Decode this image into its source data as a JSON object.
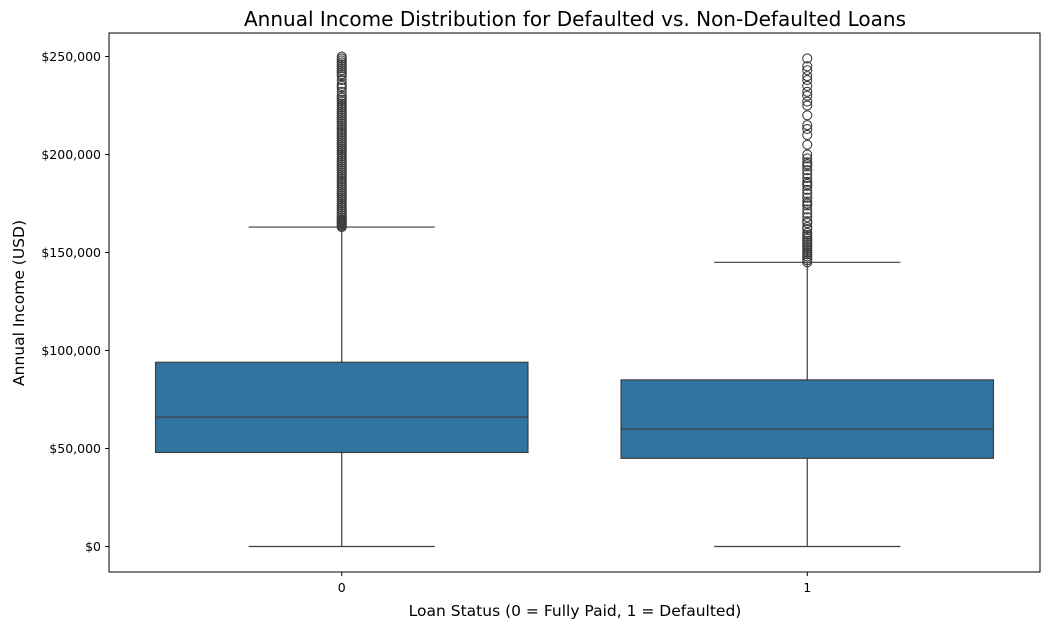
{
  "chart_data": {
    "type": "box",
    "title": "Annual Income Distribution for Defaulted vs. Non-Defaulted Loans",
    "xlabel": "Loan Status (0 = Fully Paid, 1 = Defaulted)",
    "ylabel": "Annual Income (USD)",
    "ylim": [
      -13000,
      262000
    ],
    "yticks": [
      0,
      50000,
      100000,
      150000,
      200000,
      250000
    ],
    "ytick_labels": [
      "$0",
      "$50,000",
      "$100,000",
      "$150,000",
      "$200,000",
      "$250,000"
    ],
    "categories": [
      "0",
      "1"
    ],
    "grid": false,
    "box_color": "#3274a1",
    "line_color": "#3d3d3d",
    "boxes": [
      {
        "category": "0",
        "whisker_low": 0,
        "q1": 48000,
        "median": 66000,
        "q3": 94000,
        "whisker_high": 163000,
        "outliers_range": [
          163000,
          250000
        ],
        "outliers": [
          163000,
          163500,
          164000,
          164500,
          165000,
          165500,
          166000,
          166500,
          167000,
          168000,
          169000,
          170000,
          171000,
          172000,
          173000,
          174000,
          175000,
          176000,
          177000,
          178000,
          179000,
          180000,
          181000,
          182000,
          183000,
          184000,
          185000,
          186000,
          187000,
          188000,
          189000,
          190000,
          191000,
          192000,
          193000,
          194000,
          195000,
          196000,
          197000,
          198000,
          199000,
          200000,
          201000,
          202000,
          203000,
          204000,
          205000,
          206000,
          207000,
          208000,
          209000,
          210000,
          211000,
          212000,
          213000,
          214000,
          215000,
          216000,
          217000,
          218000,
          219000,
          220000,
          221000,
          222000,
          223000,
          224000,
          225000,
          226000,
          227000,
          228000,
          229000,
          230000,
          232000,
          234000,
          235000,
          236000,
          238000,
          240000,
          241000,
          242000,
          243000,
          244000,
          245000,
          246000,
          247000,
          248000,
          249000,
          250000
        ]
      },
      {
        "category": "1",
        "whisker_low": 0,
        "q1": 45000,
        "median": 60000,
        "q3": 85000,
        "whisker_high": 145000,
        "outliers_range": [
          145000,
          249000
        ],
        "outliers": [
          145000,
          146000,
          147000,
          148000,
          149000,
          150000,
          151000,
          152000,
          153000,
          154000,
          155000,
          156000,
          157000,
          158000,
          159000,
          160000,
          162000,
          163000,
          165000,
          166000,
          168000,
          170000,
          172000,
          174000,
          175000,
          176000,
          178000,
          180000,
          182000,
          184000,
          185000,
          186000,
          188000,
          190000,
          192000,
          194000,
          195000,
          196000,
          198000,
          200000,
          205000,
          210000,
          213000,
          215000,
          220000,
          225000,
          227000,
          230000,
          232000,
          235000,
          238000,
          240000,
          243000,
          245000,
          249000
        ]
      }
    ]
  }
}
